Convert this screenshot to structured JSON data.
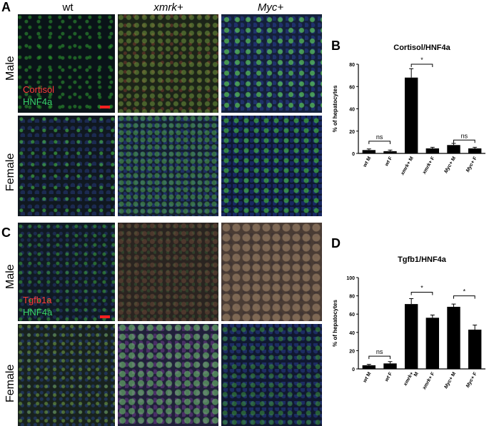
{
  "panels": {
    "A": "A",
    "B": "B",
    "C": "C",
    "D": "D"
  },
  "columns": {
    "wt": "wt",
    "xmrk": "xmrk+",
    "myc": "Myc+"
  },
  "rows": {
    "male": "Male",
    "female": "Female"
  },
  "overlays": {
    "a_red": "Cortisol",
    "a_green": "HNF4a",
    "c_red": "Tgfb1a",
    "c_green": "HNF4a"
  },
  "chart_data": [
    {
      "type": "bar",
      "title": "Cortisol/HNF4a",
      "ylabel": "% of hepatocytes",
      "ylim": [
        0,
        80
      ],
      "yticks": [
        "0",
        "20",
        "40",
        "60",
        "80"
      ],
      "categories": [
        {
          "pre": "wt",
          "post": " M"
        },
        {
          "pre": "wt",
          "post": " F"
        },
        {
          "pre": "xmrk+",
          "post": " M"
        },
        {
          "pre": "xmrk+",
          "post": " F"
        },
        {
          "pre": "Myc+",
          "post": " M"
        },
        {
          "pre": "Myc+",
          "post": " F"
        }
      ],
      "values": [
        3,
        2,
        68,
        4.5,
        7.5,
        4.5
      ],
      "errors": [
        1,
        1,
        8,
        1,
        1.5,
        1
      ],
      "annotations": [
        {
          "from": 0,
          "to": 1,
          "label": "ns",
          "level": 11
        },
        {
          "from": 2,
          "to": 3,
          "label": "*",
          "level": 80
        },
        {
          "from": 4,
          "to": 5,
          "label": "ns",
          "level": 12
        }
      ]
    },
    {
      "type": "bar",
      "title": "Tgfb1/HNF4a",
      "ylabel": "% of hepatocytes",
      "ylim": [
        0,
        100
      ],
      "yticks": [
        "0",
        "20",
        "40",
        "60",
        "80",
        "100"
      ],
      "categories": [
        {
          "pre": "wt",
          "post": " M"
        },
        {
          "pre": "wt",
          "post": " F"
        },
        {
          "pre": "xmrk+",
          "post": ""
        },
        {
          "pre": "xmrk+",
          "post": " F"
        },
        {
          "pre": "Myc+",
          "post": " M"
        },
        {
          "pre": "Myc+",
          "post": " F"
        }
      ],
      "extra_labels": [
        "M"
      ],
      "values": [
        4,
        6,
        71,
        56,
        68,
        43
      ],
      "errors": [
        1,
        2,
        6,
        3,
        3,
        5
      ],
      "annotations": [
        {
          "from": 0,
          "to": 1,
          "label": "ns",
          "level": 14
        },
        {
          "from": 2,
          "to": 3,
          "label": "*",
          "level": 84
        },
        {
          "from": 4,
          "to": 5,
          "label": "*",
          "level": 80
        }
      ]
    }
  ]
}
